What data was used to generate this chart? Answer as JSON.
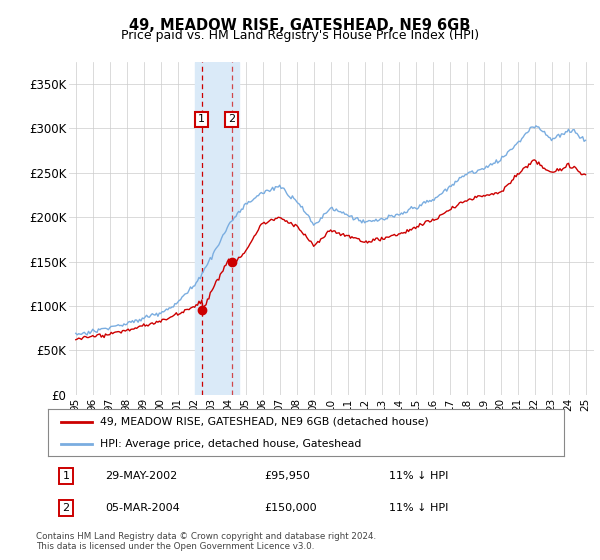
{
  "title": "49, MEADOW RISE, GATESHEAD, NE9 6GB",
  "subtitle": "Price paid vs. HM Land Registry's House Price Index (HPI)",
  "legend_line1": "49, MEADOW RISE, GATESHEAD, NE9 6GB (detached house)",
  "legend_line2": "HPI: Average price, detached house, Gateshead",
  "transaction1_date": "29-MAY-2002",
  "transaction1_price": 95950,
  "transaction1_hpi_text": "11% ↓ HPI",
  "transaction2_date": "05-MAR-2004",
  "transaction2_price": 150000,
  "transaction2_hpi_text": "11% ↓ HPI",
  "footer": "Contains HM Land Registry data © Crown copyright and database right 2024.\nThis data is licensed under the Open Government Licence v3.0.",
  "hpi_color": "#7aade0",
  "price_color": "#cc0000",
  "highlight_color": "#daeaf8",
  "grid_color": "#cccccc",
  "ylim": [
    0,
    375000
  ],
  "yticks": [
    0,
    50000,
    100000,
    150000,
    200000,
    250000,
    300000,
    350000
  ],
  "transaction1_x": 2002.41,
  "transaction2_x": 2004.17,
  "highlight_x1": 2002.0,
  "highlight_x2": 2004.6,
  "xmin": 1994.6,
  "xmax": 2025.5
}
